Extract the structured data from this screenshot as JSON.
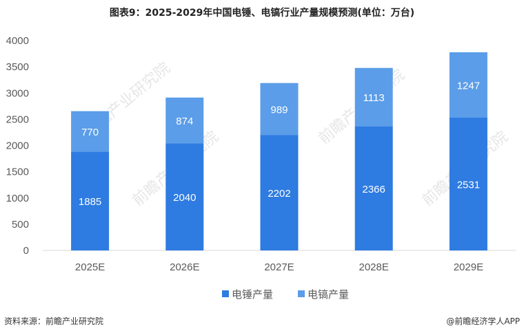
{
  "title": "图表9：2025-2029年中国电锤、电镐行业产量规模预测(单位：万台)",
  "source": "资料来源：前瞻产业研究院",
  "credit": "@前瞻经济学人APP",
  "watermark": "前瞻产业研究院",
  "chart_data": {
    "type": "bar",
    "stacked": true,
    "categories": [
      "2025E",
      "2026E",
      "2027E",
      "2028E",
      "2029E"
    ],
    "series": [
      {
        "name": "电锤产量",
        "values": [
          1885,
          2040,
          2202,
          2366,
          2531
        ],
        "color": "#2e7be1"
      },
      {
        "name": "电镐产量",
        "values": [
          770,
          874,
          989,
          1113,
          1247
        ],
        "color": "#5b9de8"
      }
    ],
    "ylim": [
      0,
      4000
    ],
    "yticks": [
      0,
      500,
      1000,
      1500,
      2000,
      2500,
      3000,
      3500,
      4000
    ],
    "grid": false,
    "legend_position": "bottom"
  }
}
